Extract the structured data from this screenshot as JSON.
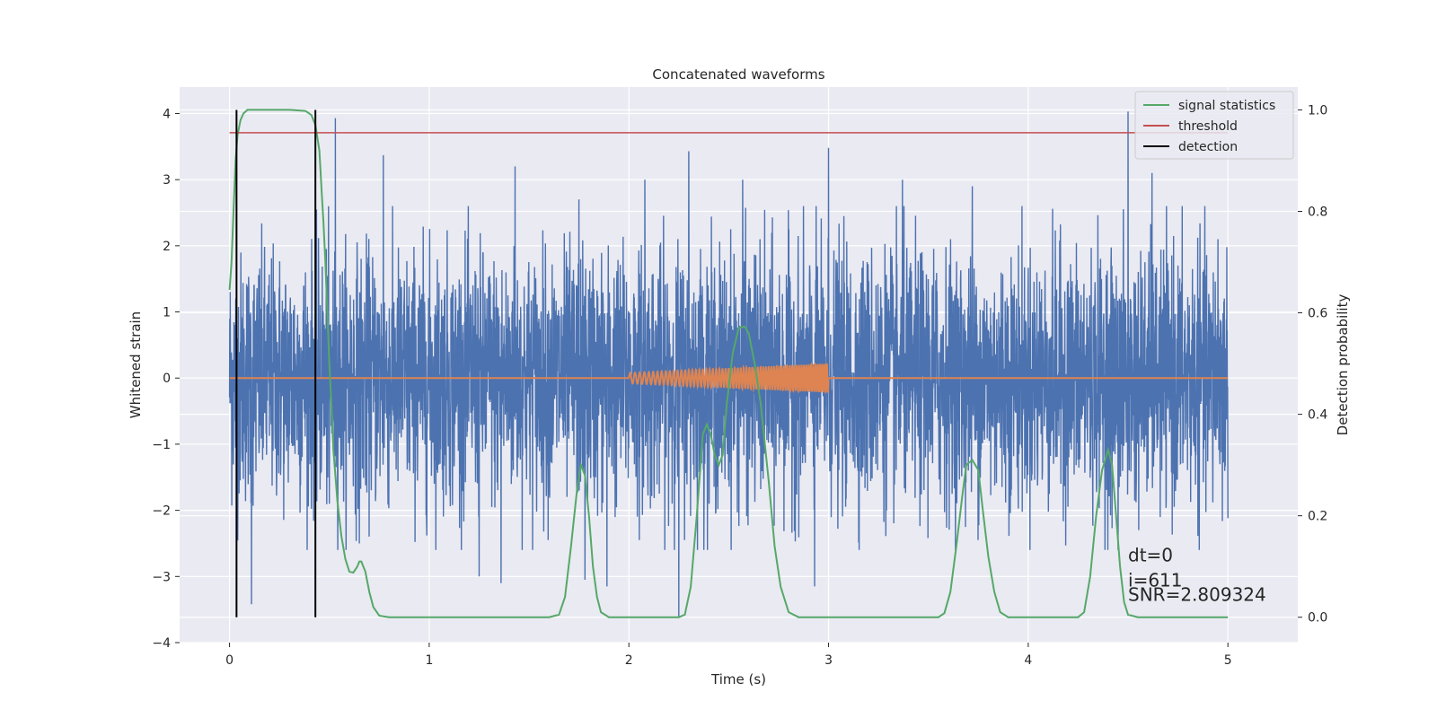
{
  "chart_data": {
    "type": "line",
    "title": "Concatenated waveforms",
    "xlabel": "Time (s)",
    "ylabel": "Whitened strain",
    "ylabel_right": "Detection probability",
    "xlim": [
      -0.25,
      5.35
    ],
    "ylim": [
      -4.0,
      4.4
    ],
    "ylim_right": [
      -0.05,
      1.045
    ],
    "x_ticks": [
      0,
      1,
      2,
      3,
      4,
      5
    ],
    "y_ticks": [
      -4,
      -3,
      -2,
      -1,
      0,
      1,
      2,
      3,
      4
    ],
    "y_ticks_right": [
      0.0,
      0.2,
      0.4,
      0.6,
      0.8,
      1.0
    ],
    "grid": true,
    "legend_position": "top-right",
    "colors": {
      "strain": "#4c72b0",
      "template": "#dd8452",
      "signal_statistics": "#55a868",
      "threshold": "#c44e52",
      "detection": "#000000",
      "background": "#eaeaf2"
    },
    "series": [
      {
        "name": "",
        "axis": "left",
        "kind": "noise",
        "x_range": [
          0,
          5
        ],
        "typical_amplitude": 1.2,
        "peaks": [
          [
            0.53,
            3.93
          ],
          [
            0.77,
            3.37
          ],
          [
            1.43,
            3.2
          ],
          [
            1.75,
            2.7
          ],
          [
            2.08,
            3.0
          ],
          [
            2.3,
            3.43
          ],
          [
            2.57,
            3.0
          ],
          [
            3.0,
            3.48
          ],
          [
            3.37,
            3.0
          ],
          [
            3.72,
            2.9
          ],
          [
            4.5,
            4.03
          ],
          [
            4.62,
            3.1
          ],
          [
            4.95,
            2.1
          ]
        ],
        "troughs": [
          [
            0.11,
            -3.42
          ],
          [
            0.5,
            -1.9
          ],
          [
            0.65,
            -2.5
          ],
          [
            1.25,
            -3.0
          ],
          [
            1.36,
            -3.1
          ],
          [
            1.78,
            -3.05
          ],
          [
            1.89,
            -3.15
          ],
          [
            2.25,
            -3.62
          ],
          [
            2.93,
            -3.15
          ],
          [
            4.45,
            -2.6
          ]
        ]
      },
      {
        "name": "",
        "axis": "left",
        "kind": "chirp",
        "x_range": [
          2.0,
          3.0
        ],
        "amplitude_start": 0.08,
        "amplitude_end": 0.22
      },
      {
        "name": "signal statistics",
        "axis": "right",
        "points": [
          [
            0.0,
            0.645
          ],
          [
            0.01,
            0.7
          ],
          [
            0.02,
            0.8
          ],
          [
            0.03,
            0.9
          ],
          [
            0.04,
            0.95
          ],
          [
            0.055,
            0.98
          ],
          [
            0.07,
            0.993
          ],
          [
            0.09,
            1.0
          ],
          [
            0.3,
            1.0
          ],
          [
            0.38,
            0.998
          ],
          [
            0.41,
            0.99
          ],
          [
            0.43,
            0.97
          ],
          [
            0.45,
            0.92
          ],
          [
            0.46,
            0.85
          ],
          [
            0.47,
            0.78
          ],
          [
            0.48,
            0.7
          ],
          [
            0.49,
            0.6
          ],
          [
            0.5,
            0.5
          ],
          [
            0.51,
            0.42
          ],
          [
            0.52,
            0.33
          ],
          [
            0.54,
            0.23
          ],
          [
            0.56,
            0.16
          ],
          [
            0.58,
            0.115
          ],
          [
            0.6,
            0.09
          ],
          [
            0.62,
            0.088
          ],
          [
            0.64,
            0.1
          ],
          [
            0.65,
            0.11
          ],
          [
            0.66,
            0.11
          ],
          [
            0.68,
            0.09
          ],
          [
            0.7,
            0.05
          ],
          [
            0.72,
            0.02
          ],
          [
            0.75,
            0.003
          ],
          [
            0.8,
            0.0
          ],
          [
            1.6,
            0.0
          ],
          [
            1.65,
            0.005
          ],
          [
            1.68,
            0.04
          ],
          [
            1.71,
            0.14
          ],
          [
            1.74,
            0.25
          ],
          [
            1.76,
            0.3
          ],
          [
            1.78,
            0.28
          ],
          [
            1.8,
            0.2
          ],
          [
            1.82,
            0.1
          ],
          [
            1.84,
            0.04
          ],
          [
            1.86,
            0.01
          ],
          [
            1.9,
            0.0
          ],
          [
            2.25,
            0.0
          ],
          [
            2.28,
            0.005
          ],
          [
            2.31,
            0.06
          ],
          [
            2.34,
            0.2
          ],
          [
            2.37,
            0.36
          ],
          [
            2.39,
            0.38
          ],
          [
            2.41,
            0.36
          ],
          [
            2.43,
            0.32
          ],
          [
            2.45,
            0.3
          ],
          [
            2.47,
            0.32
          ],
          [
            2.49,
            0.42
          ],
          [
            2.52,
            0.52
          ],
          [
            2.55,
            0.57
          ],
          [
            2.58,
            0.573
          ],
          [
            2.6,
            0.56
          ],
          [
            2.63,
            0.5
          ],
          [
            2.66,
            0.42
          ],
          [
            2.7,
            0.27
          ],
          [
            2.73,
            0.14
          ],
          [
            2.76,
            0.06
          ],
          [
            2.8,
            0.01
          ],
          [
            2.85,
            0.0
          ],
          [
            3.55,
            0.0
          ],
          [
            3.58,
            0.008
          ],
          [
            3.61,
            0.05
          ],
          [
            3.64,
            0.14
          ],
          [
            3.67,
            0.24
          ],
          [
            3.69,
            0.3
          ],
          [
            3.72,
            0.31
          ],
          [
            3.75,
            0.29
          ],
          [
            3.77,
            0.22
          ],
          [
            3.8,
            0.12
          ],
          [
            3.83,
            0.05
          ],
          [
            3.86,
            0.01
          ],
          [
            3.9,
            0.0
          ],
          [
            4.25,
            0.0
          ],
          [
            4.28,
            0.01
          ],
          [
            4.31,
            0.08
          ],
          [
            4.34,
            0.2
          ],
          [
            4.37,
            0.29
          ],
          [
            4.4,
            0.33
          ],
          [
            4.42,
            0.3
          ],
          [
            4.44,
            0.2
          ],
          [
            4.46,
            0.1
          ],
          [
            4.48,
            0.03
          ],
          [
            4.5,
            0.005
          ],
          [
            4.55,
            0.0
          ],
          [
            5.0,
            0.0
          ]
        ]
      },
      {
        "name": "threshold",
        "axis": "right",
        "points": [
          [
            0,
            0.955
          ],
          [
            5,
            0.955
          ]
        ]
      },
      {
        "name": "detection",
        "axis": "right",
        "vlines": [
          0.035,
          0.43
        ],
        "ymin": 0.0,
        "ymax": 1.0
      }
    ],
    "annotations": [
      {
        "text": "dt=0",
        "x": 4.5,
        "y": -2.77
      },
      {
        "text": "i=611",
        "x": 4.5,
        "y": -3.15
      },
      {
        "text": "SNR=2.809324",
        "x": 4.5,
        "y": -3.37
      }
    ]
  }
}
